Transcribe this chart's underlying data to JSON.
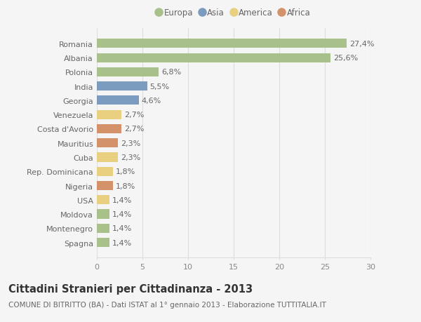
{
  "categories": [
    "Spagna",
    "Montenegro",
    "Moldova",
    "USA",
    "Nigeria",
    "Rep. Dominicana",
    "Cuba",
    "Mauritius",
    "Costa d'Avorio",
    "Venezuela",
    "Georgia",
    "India",
    "Polonia",
    "Albania",
    "Romania"
  ],
  "values": [
    1.4,
    1.4,
    1.4,
    1.4,
    1.8,
    1.8,
    2.3,
    2.3,
    2.7,
    2.7,
    4.6,
    5.5,
    6.8,
    25.6,
    27.4
  ],
  "labels": [
    "1,4%",
    "1,4%",
    "1,4%",
    "1,4%",
    "1,8%",
    "1,8%",
    "2,3%",
    "2,3%",
    "2,7%",
    "2,7%",
    "4,6%",
    "5,5%",
    "6,8%",
    "25,6%",
    "27,4%"
  ],
  "continent": [
    "Europa",
    "Europa",
    "Europa",
    "America",
    "Africa",
    "America",
    "America",
    "Africa",
    "Africa",
    "America",
    "Asia",
    "Asia",
    "Europa",
    "Europa",
    "Europa"
  ],
  "colors": {
    "Europa": "#a8c08a",
    "Asia": "#7b9bbf",
    "America": "#e8d080",
    "Africa": "#d4926a"
  },
  "legend_order": [
    "Europa",
    "Asia",
    "America",
    "Africa"
  ],
  "title": "Cittadini Stranieri per Cittadinanza - 2013",
  "subtitle": "COMUNE DI BITRITTO (BA) - Dati ISTAT al 1° gennaio 2013 - Elaborazione TUTTITALIA.IT",
  "xlim": [
    0,
    30
  ],
  "xticks": [
    0,
    5,
    10,
    15,
    20,
    25,
    30
  ],
  "bg_color": "#f5f5f5",
  "grid_color": "#dddddd",
  "bar_height": 0.65,
  "label_fontsize": 8,
  "tick_fontsize": 8,
  "title_fontsize": 10.5,
  "subtitle_fontsize": 7.5
}
